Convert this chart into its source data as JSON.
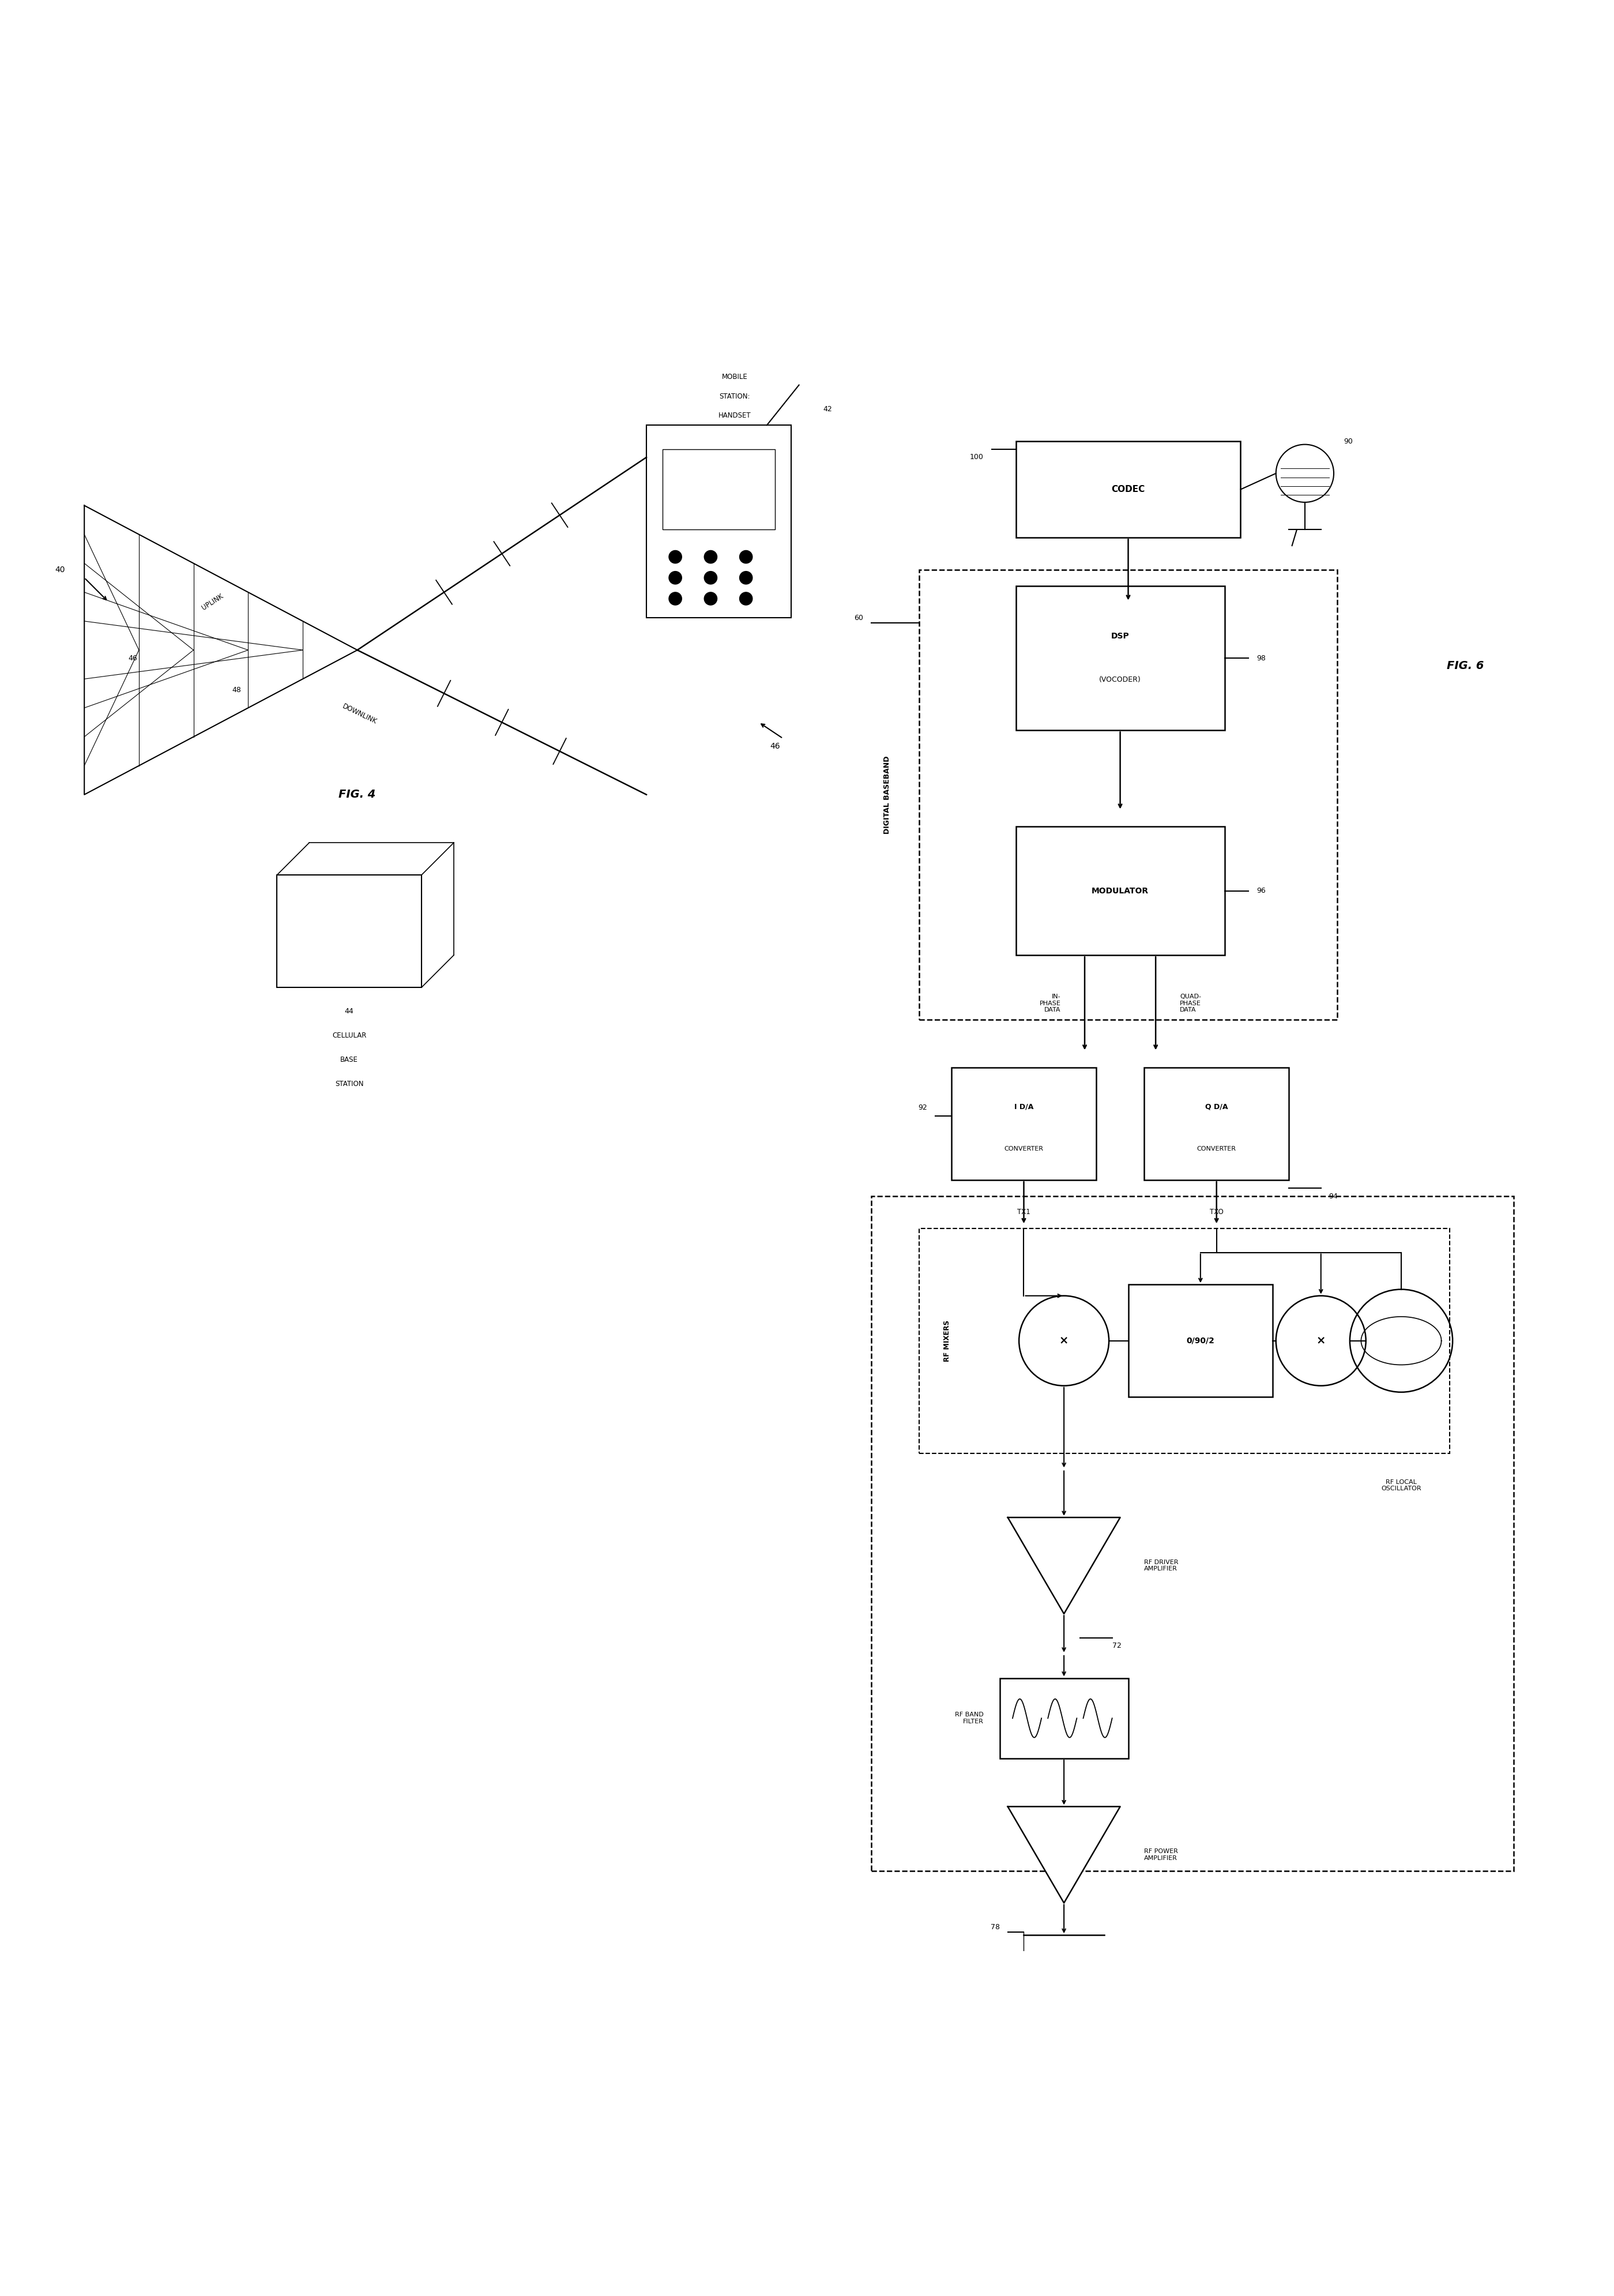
{
  "fig_width": 27.99,
  "fig_height": 39.81,
  "bg_color": "#ffffff",
  "line_color": "#000000",
  "fig4_label": "FIG. 4",
  "fig6_label": "FIG. 6",
  "label_40": "40",
  "label_42": "42",
  "label_44": "44",
  "label_46": "46",
  "label_48": "48",
  "label_60": "60",
  "label_72": "72",
  "label_78": "78",
  "label_90": "90",
  "label_92": "92",
  "label_94": "94",
  "label_96": "96",
  "label_98": "98",
  "label_100": "100",
  "text_uplink": "UPLINK",
  "text_downlink": "DOWNLINK",
  "text_mobile_station": "MOBILE\nSTATION:\nHANDSET",
  "text_cellular": "CELLULAR\nBASE\nSTATION",
  "text_codec": "CODEC",
  "text_dsp": "DSP\n(VOCODER)",
  "text_modulator": "MODULATOR",
  "text_digital_baseband": "DIGITAL BASEBAND",
  "text_i_da": "I D/A\nCONVERTER",
  "text_q_da": "Q D/A\nCONVERTER",
  "text_in_phase": "IN-\nPHASE\nDATA",
  "text_quad_phase": "QUAD-\nPHASE\nDATA",
  "text_rf_mixers": "RF MIXERS",
  "text_0_90_2": "0/90/2",
  "text_rf_local_osc": "RF LOCAL\nOSCILLATOR",
  "text_rf_driver": "RF DRIVER\nAMPLIFIER",
  "text_rf_band": "RF BAND\nFILTER",
  "text_rf_power": "RF POWER\nAMPLIFIER",
  "text_tx1": "TX1",
  "text_tx0": "TXO"
}
